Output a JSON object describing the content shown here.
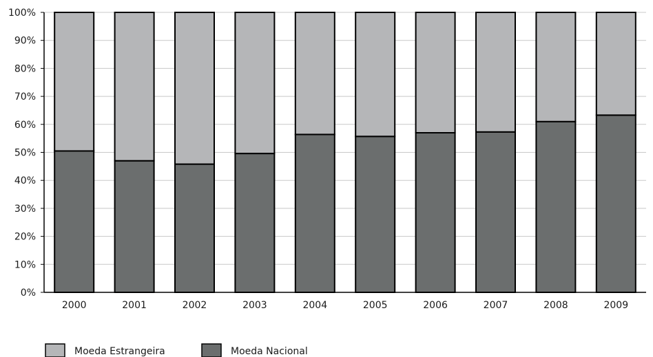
{
  "chart_data": {
    "type": "bar",
    "stacked": true,
    "percent": true,
    "categories": [
      "2000",
      "2001",
      "2002",
      "2003",
      "2004",
      "2005",
      "2006",
      "2007",
      "2008",
      "2009"
    ],
    "series": [
      {
        "name": "Moeda Nacional",
        "color": "#6b6e6e",
        "values": [
          50.5,
          47,
          45.8,
          49.6,
          56.4,
          55.7,
          57,
          57.3,
          61,
          63.3
        ]
      },
      {
        "name": "Moeda Estrangeira",
        "color": "#b5b6b8",
        "values": [
          49.5,
          53,
          54.2,
          50.4,
          43.6,
          44.3,
          43,
          42.7,
          39,
          36.7
        ]
      }
    ],
    "ylim": [
      0,
      100
    ],
    "yticks": [
      "0%",
      "10%",
      "20%",
      "30%",
      "40%",
      "50%",
      "60%",
      "70%",
      "80%",
      "90%",
      "100%"
    ],
    "grid": true,
    "legend": {
      "position": "bottom-left",
      "items": [
        {
          "label": "Moeda Estrangeira",
          "color": "#b5b6b8"
        },
        {
          "label": "Moeda Nacional",
          "color": "#6b6e6e"
        }
      ]
    }
  }
}
